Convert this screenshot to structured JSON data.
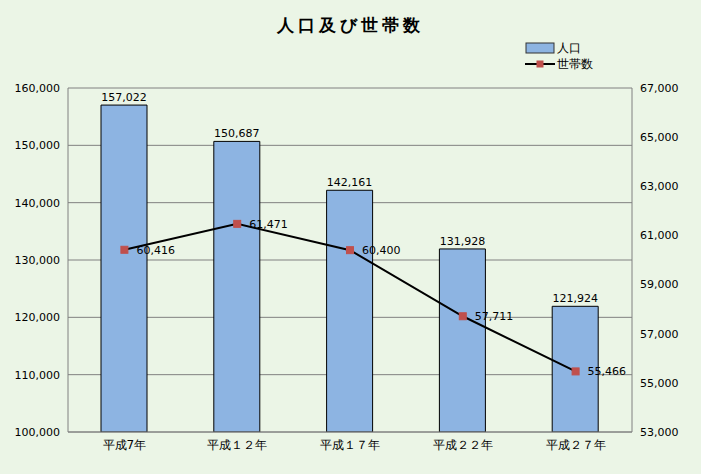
{
  "chart_data": {
    "type": "bar",
    "title": "人口及び世帯数",
    "categories": [
      "平成7年",
      "平成１２年",
      "平成１７年",
      "平成２２年",
      "平成２７年"
    ],
    "series": [
      {
        "name": "人口",
        "type": "bar",
        "color": "#8db4e2",
        "values": [
          157022,
          150687,
          142161,
          131928,
          121924
        ],
        "value_labels": [
          "157,022",
          "150,687",
          "142,161",
          "131,928",
          "121,924"
        ]
      },
      {
        "name": "世帯数",
        "type": "line",
        "axis": "y2",
        "color": "#000000",
        "marker": "square",
        "values": [
          60416,
          61471,
          60400,
          57711,
          55466
        ],
        "value_labels": [
          "60,416",
          "61,471",
          "60,400",
          "57,711",
          "55,466"
        ]
      }
    ],
    "ylim": [
      100000,
      160000
    ],
    "yticks": [
      {
        "value": 100000,
        "label": "100,000"
      },
      {
        "value": 110000,
        "label": "110,000"
      },
      {
        "value": 120000,
        "label": "120,000"
      },
      {
        "value": 130000,
        "label": "130,000"
      },
      {
        "value": 140000,
        "label": "140,000"
      },
      {
        "value": 150000,
        "label": "150,000"
      },
      {
        "value": 160000,
        "label": "160,000"
      }
    ],
    "y2lim": [
      53000,
      67000
    ],
    "y2ticks": [
      {
        "value": 53000,
        "label": "53,000"
      },
      {
        "value": 55000,
        "label": "55,000"
      },
      {
        "value": 57000,
        "label": "57,000"
      },
      {
        "value": 59000,
        "label": "59,000"
      },
      {
        "value": 61000,
        "label": "61,000"
      },
      {
        "value": 63000,
        "label": "63,000"
      },
      {
        "value": 65000,
        "label": "65,000"
      },
      {
        "value": 67000,
        "label": "67,000"
      }
    ],
    "grid": true,
    "legend": "upper right",
    "data_labels": true
  }
}
